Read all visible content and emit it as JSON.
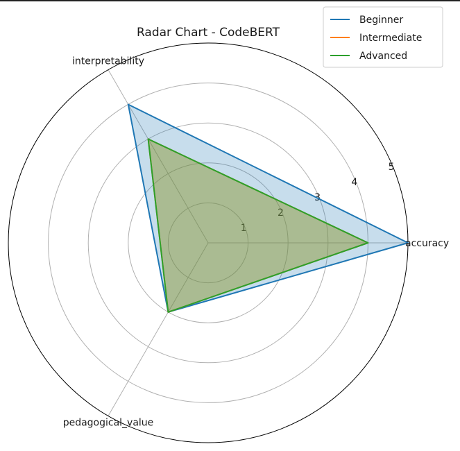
{
  "chart_data": {
    "type": "radar",
    "title": "Radar Chart - CodeBERT",
    "axes": [
      "accuracy",
      "interpretability",
      "pedagogical_value"
    ],
    "radial_ticks": [
      1,
      2,
      3,
      4,
      5
    ],
    "rlim": [
      0,
      5
    ],
    "grid": true,
    "legend_position": "top-right",
    "series": [
      {
        "name": "Beginner",
        "values": [
          5,
          4,
          2
        ],
        "color": "#1f77b4",
        "filled": true
      },
      {
        "name": "Intermediate",
        "values": [
          4,
          3,
          2
        ],
        "color": "#ff7f0e",
        "filled": true
      },
      {
        "name": "Advanced",
        "values": [
          4,
          3,
          2
        ],
        "color": "#2ca02c",
        "filled": true
      }
    ]
  }
}
